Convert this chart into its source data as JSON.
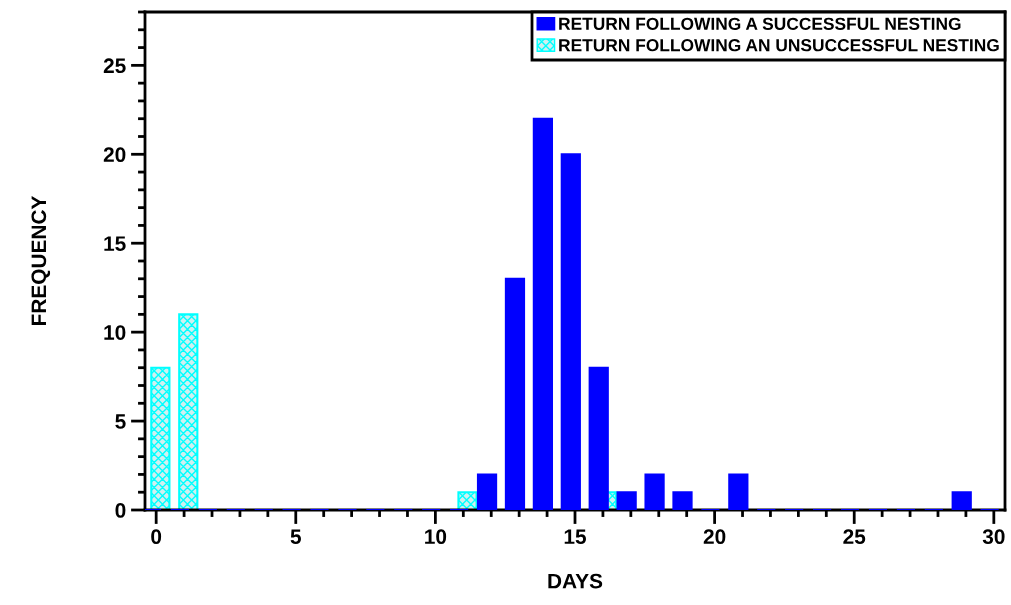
{
  "chart_data": {
    "type": "bar",
    "xlabel": "DAYS",
    "ylabel": "FREQUENCY",
    "x": [
      0,
      1,
      2,
      3,
      4,
      5,
      6,
      7,
      8,
      9,
      10,
      11,
      12,
      13,
      14,
      15,
      16,
      17,
      18,
      19,
      20,
      21,
      22,
      23,
      24,
      25,
      26,
      27,
      28,
      29,
      30
    ],
    "series": [
      {
        "name": "RETURN FOLLOWING A SUCCESSFUL NESTING",
        "color": "#0000ff",
        "values": [
          0,
          0,
          0,
          0,
          0,
          0,
          0,
          0,
          0,
          0,
          0,
          0,
          2,
          13,
          22,
          20,
          8,
          1,
          2,
          1,
          0,
          2,
          0,
          0,
          0,
          0,
          0,
          0,
          0,
          1,
          0
        ]
      },
      {
        "name": "RETURN FOLLOWING AN UNSUCCESSFUL NESTING",
        "color": "#00ffff",
        "values": [
          8,
          11,
          0,
          0,
          0,
          0,
          0,
          0,
          0,
          0,
          0,
          1,
          0,
          0,
          0,
          0,
          1,
          0,
          0,
          0,
          0,
          0,
          0,
          0,
          0,
          0,
          0,
          0,
          0,
          0,
          0
        ]
      }
    ],
    "xlim": [
      -0.4,
      30.4
    ],
    "xticks": [
      0,
      5,
      10,
      15,
      20,
      25,
      30
    ],
    "ylim": [
      0,
      28
    ],
    "yticks": [
      0,
      5,
      10,
      15,
      20,
      25
    ],
    "grid": false,
    "legend": "top right"
  }
}
